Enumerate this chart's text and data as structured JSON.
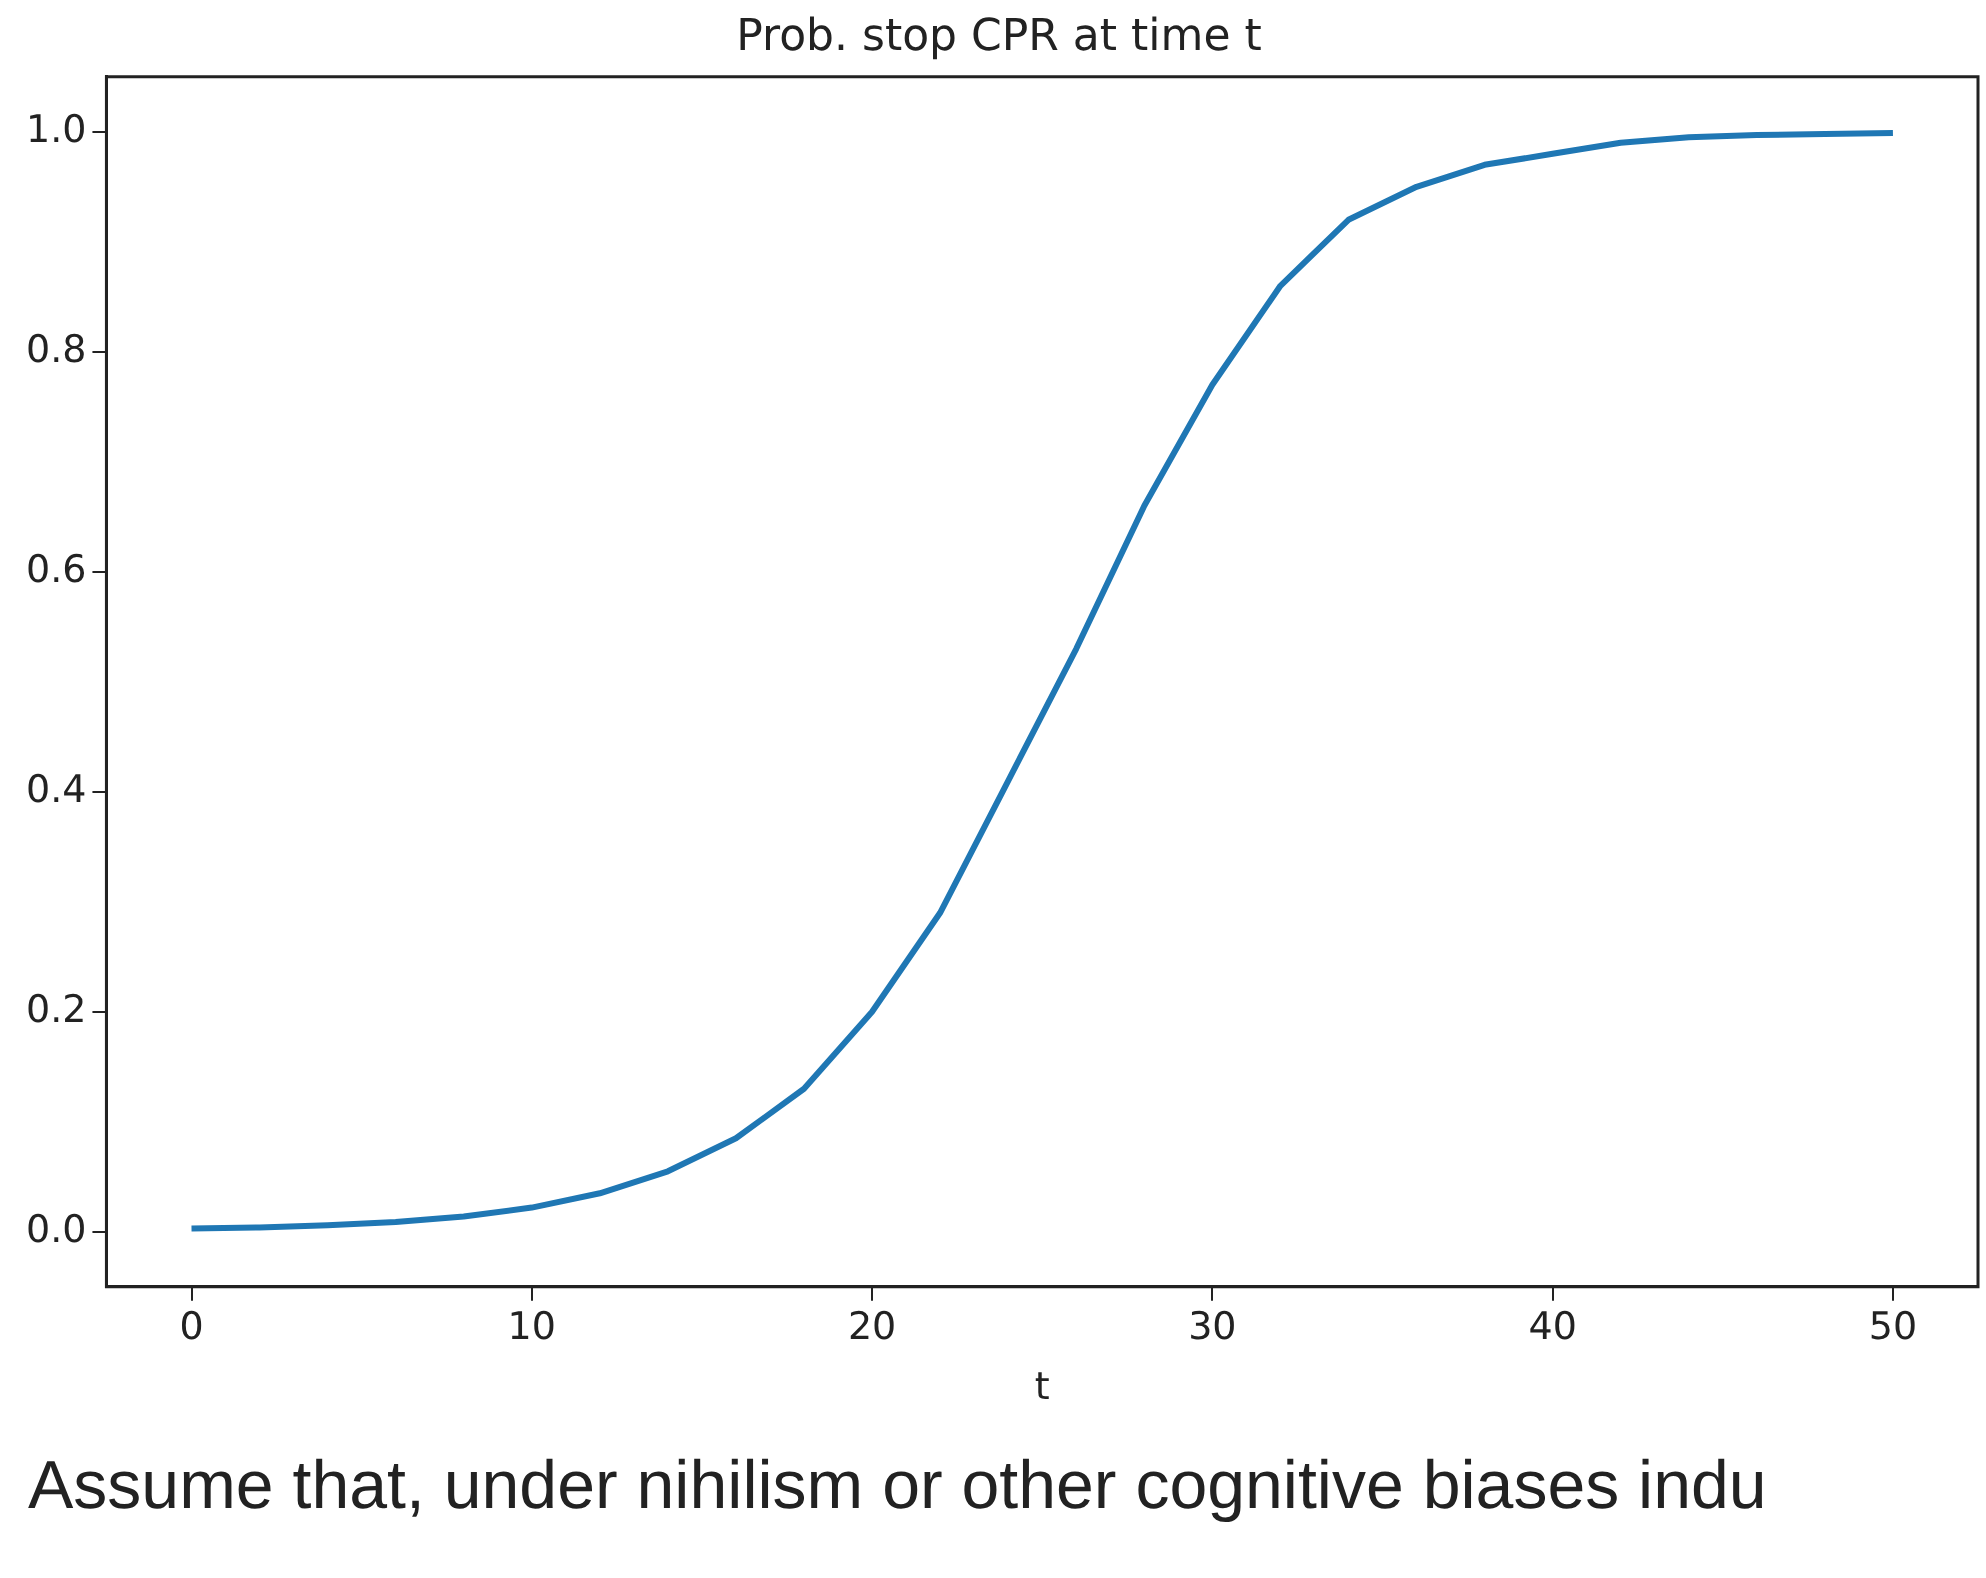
{
  "chart_data": {
    "type": "line",
    "title": "Prob. stop CPR at time t",
    "xlabel": "t",
    "x": [
      0,
      2,
      4,
      6,
      8,
      10,
      12,
      14,
      16,
      18,
      20,
      22,
      24,
      26,
      28,
      30,
      32,
      34,
      36,
      38,
      40,
      42,
      44,
      46,
      48,
      50
    ],
    "series": [
      {
        "color": "#1f77b4",
        "values": [
          0.003,
          0.004,
          0.006,
          0.009,
          0.014,
          0.022,
          0.035,
          0.055,
          0.085,
          0.13,
          0.2,
          0.29,
          0.41,
          0.53,
          0.66,
          0.77,
          0.86,
          0.92,
          0.95,
          0.97,
          0.98,
          0.99,
          0.995,
          0.997,
          0.998,
          0.999
        ]
      }
    ],
    "xlim": [
      -2.5,
      52.5
    ],
    "xticks": [
      0,
      10,
      20,
      30,
      40,
      50
    ],
    "ylim": [
      -0.05,
      1.05
    ],
    "yticks": [
      {
        "value": 0,
        "label": "0.0"
      },
      {
        "value": 0.2,
        "label": "0.2"
      },
      {
        "value": 0.4,
        "label": "0.4"
      },
      {
        "value": 0.6,
        "label": "0.6"
      },
      {
        "value": 0.8,
        "label": "0.8"
      },
      {
        "value": 1,
        "label": "1.0"
      }
    ],
    "grid": false,
    "legend": false,
    "marker": "none",
    "line_style": "solid",
    "annotations": [
      "Assume that, under nihilism or other cognitive biases indu"
    ]
  }
}
